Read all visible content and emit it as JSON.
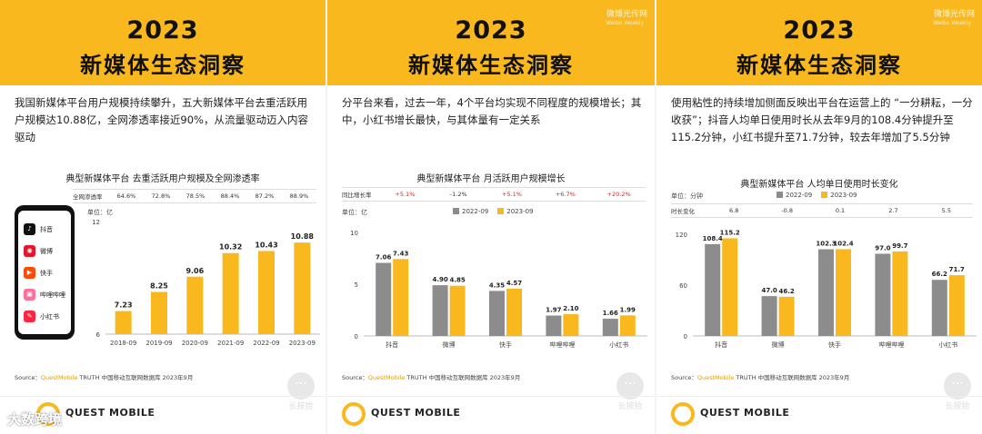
{
  "header": {
    "year": "2023",
    "title": "新媒体生态洞察",
    "weibo": "微博光传网",
    "weibo_sub": "Weibo Weekly"
  },
  "panels": [
    {
      "intro": "我国新媒体平台用户规模持续攀升，五大新媒体平台去重活跃用户规模达10.88亿，全网渗透率接近90%，从流量驱动迈入内容驱动",
      "chart_title": "典型新媒体平台 去重活跃用户规模及全网渗透率",
      "table_head": "全网渗透率",
      "table": [
        "64.6%",
        "72.8%",
        "78.5%",
        "88.4%",
        "87.2%",
        "88.9%"
      ],
      "unit": "单位：亿",
      "apps": [
        "抖音",
        "微博",
        "快手",
        "哔哩哔哩",
        "小红书"
      ]
    },
    {
      "intro": "分平台来看，过去一年，4个平台均实现不同程度的规模增长；其中，小红书增长最快，与其体量有一定关系",
      "chart_title": "典型新媒体平台 月活跃用户规模增长",
      "table_head": "同比增长率",
      "table": [
        "+5.1%",
        "-1.2%",
        "+5.1%",
        "+6.7%",
        "+20.2%"
      ],
      "unit": "单位：亿"
    },
    {
      "intro": "使用粘性的持续增加侧面反映出平台在运营上的 “一分耕耘，一分收获”；抖音人均单日使用时长从去年9月的108.4分钟提升至115.2分钟，小红书提升至71.7分钟，较去年增加了5.5分钟",
      "chart_title": "典型新媒体平台 人均单日使用时长变化",
      "table_head": "时长变化",
      "table": [
        "6.8",
        "-0.8",
        "0.1",
        "2.7",
        "5.5"
      ],
      "unit": "单位：分钟"
    }
  ],
  "source": {
    "prefix": "Source：",
    "brand": "QuestMobile",
    "rest": "TRUTH 中国移动互联网数据库 2023年9月"
  },
  "footer": {
    "logo": "QUEST MOBILE",
    "zhang": "长按拾"
  },
  "watermark": "大数跨境",
  "colors": {
    "accent": "#f9b81d",
    "bar_yellow": "#f9b81d",
    "bar_gray": "#8c8c8c",
    "positive": "#e02020"
  },
  "chart_data": [
    {
      "type": "bar",
      "title": "典型新媒体平台 去重活跃用户规模及全网渗透率",
      "categories": [
        "2018-09",
        "2019-09",
        "2020-09",
        "2021-09",
        "2022-09",
        "2023-09"
      ],
      "values": [
        7.23,
        8.25,
        9.06,
        10.32,
        10.43,
        10.88
      ],
      "ylim": [
        6,
        12
      ],
      "yticks": [
        6,
        12
      ],
      "penetration": [
        "64.6%",
        "72.8%",
        "78.5%",
        "88.4%",
        "87.2%",
        "88.9%"
      ]
    },
    {
      "type": "bar",
      "title": "典型新媒体平台 月活跃用户规模增长",
      "categories": [
        "抖音",
        "微博",
        "快手",
        "哔哩哔哩",
        "小红书"
      ],
      "series": [
        {
          "name": "2022-09",
          "values": [
            7.06,
            4.9,
            4.35,
            1.97,
            1.66
          ]
        },
        {
          "name": "2023-09",
          "values": [
            7.43,
            4.85,
            4.57,
            2.1,
            1.99
          ]
        }
      ],
      "ylim": [
        0,
        10
      ],
      "yticks": [
        0,
        5,
        10
      ]
    },
    {
      "type": "bar",
      "title": "典型新媒体平台 人均单日使用时长变化",
      "categories": [
        "抖音",
        "微博",
        "快手",
        "哔哩哔哩",
        "小红书"
      ],
      "series": [
        {
          "name": "2022-09",
          "values": [
            108.4,
            47.0,
            102.3,
            97.0,
            66.2
          ]
        },
        {
          "name": "2023-09",
          "values": [
            115.2,
            46.2,
            102.4,
            99.7,
            71.7
          ]
        }
      ],
      "ylim": [
        0,
        120
      ],
      "yticks": [
        0,
        60,
        120
      ]
    }
  ]
}
